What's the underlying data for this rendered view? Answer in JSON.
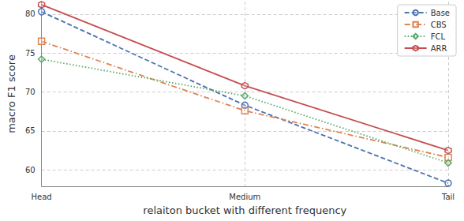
{
  "chart_data": {
    "type": "line",
    "x_label": "relaiton bucket with different frequency",
    "y_label": "macro F1 score",
    "categories": [
      "Head",
      "Medium",
      "Tail"
    ],
    "series": [
      {
        "name": "Base",
        "color": "#4c72b0",
        "line_style": "dashed",
        "marker": "circle",
        "values": [
          80.3,
          68.3,
          58.3
        ]
      },
      {
        "name": "CBS",
        "color": "#dd8452",
        "line_style": "dashdot",
        "marker": "square",
        "values": [
          76.5,
          67.6,
          61.6
        ]
      },
      {
        "name": "FCL",
        "color": "#55a868",
        "line_style": "dotted",
        "marker": "diamond",
        "values": [
          74.2,
          69.5,
          60.9
        ]
      },
      {
        "name": "ARR",
        "color": "#c44e52",
        "line_style": "solid",
        "marker": "hexagon",
        "values": [
          81.2,
          70.8,
          62.5
        ]
      }
    ],
    "ylim": [
      57.9,
      81.6
    ],
    "yticks": [
      60,
      65,
      70,
      75,
      80
    ],
    "grid": true,
    "legend": "upper right"
  }
}
